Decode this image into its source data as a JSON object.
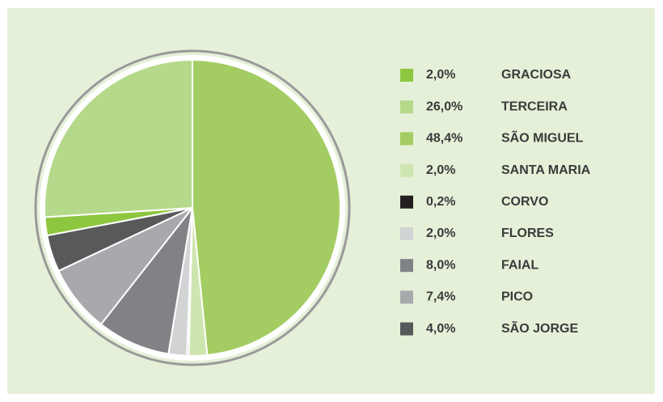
{
  "chart_data": {
    "type": "pie",
    "categories": [
      "GRACIOSA",
      "TERCEIRA",
      "SÃO MIGUEL",
      "SANTA MARIA",
      "CORVO",
      "FLORES",
      "FAIAL",
      "PICO",
      "SÃO JORGE"
    ],
    "values": [
      2.0,
      26.0,
      48.4,
      2.0,
      0.2,
      2.0,
      8.0,
      7.4,
      4.0
    ],
    "value_labels": [
      "2,0%",
      "26,0%",
      "48,4%",
      "2,0%",
      "0,2%",
      "2,0%",
      "8,0%",
      "7,4%",
      "4,0%"
    ],
    "colors": [
      "#8dc63f",
      "#b5d98a",
      "#a3cd63",
      "#cfe5b0",
      "#231f20",
      "#d1d3d4",
      "#808285",
      "#a7a9ac",
      "#58595b"
    ],
    "legend": "right"
  }
}
